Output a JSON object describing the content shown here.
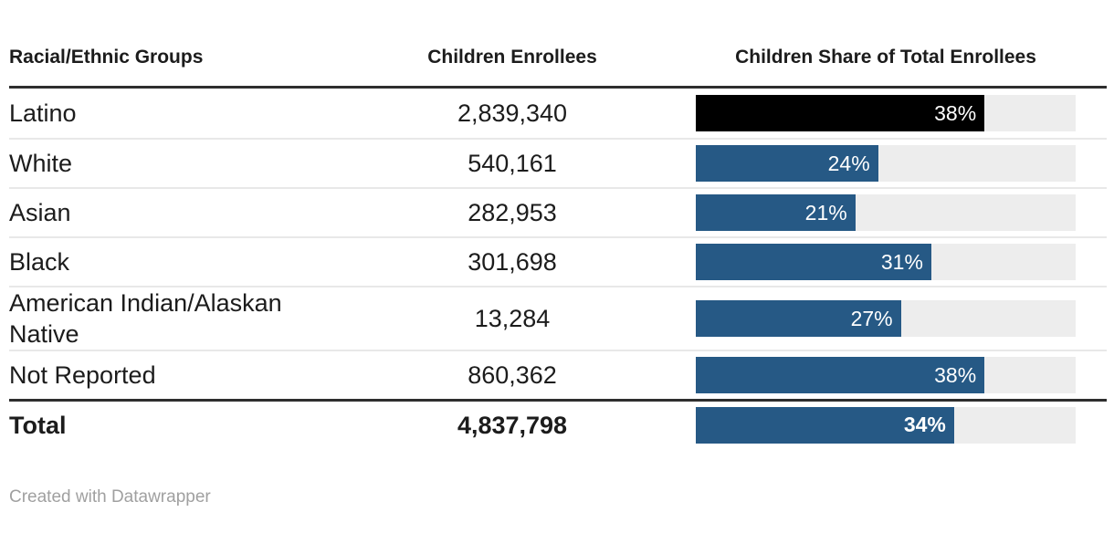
{
  "chart_data": {
    "type": "table",
    "columns": [
      "Racial/Ethnic Groups",
      "Children Enrollees",
      "Children Share of Total Enrollees"
    ],
    "rows": [
      {
        "group": "Latino",
        "children_enrollees": "2,839,340",
        "share_pct": 38,
        "share_label": "38%",
        "bar_color": "#000000",
        "is_total": false
      },
      {
        "group": "White",
        "children_enrollees": "540,161",
        "share_pct": 24,
        "share_label": "24%",
        "bar_color": "#265985",
        "is_total": false
      },
      {
        "group": "Asian",
        "children_enrollees": "282,953",
        "share_pct": 21,
        "share_label": "21%",
        "bar_color": "#265985",
        "is_total": false
      },
      {
        "group": "Black",
        "children_enrollees": "301,698",
        "share_pct": 31,
        "share_label": "31%",
        "bar_color": "#265985",
        "is_total": false
      },
      {
        "group": "American Indian/Alaskan Native",
        "children_enrollees": "13,284",
        "share_pct": 27,
        "share_label": "27%",
        "bar_color": "#265985",
        "is_total": false
      },
      {
        "group": "Not Reported",
        "children_enrollees": "860,362",
        "share_pct": 38,
        "share_label": "38%",
        "bar_color": "#265985",
        "is_total": false
      },
      {
        "group": "Total",
        "children_enrollees": "4,837,798",
        "share_pct": 34,
        "share_label": "34%",
        "bar_color": "#265985",
        "is_total": true
      }
    ],
    "bar_axis_max": 50,
    "bar_track_color": "#ededed",
    "layout_hints": {
      "bar_label_position": "inside-right",
      "bar_label_color": "#ffffff",
      "highlight_row": "Latino"
    }
  },
  "colors": {
    "bar_blue": "#265985",
    "bar_highlight_black": "#000000",
    "bar_track": "#ededed",
    "heavy_rule": "#2e2e2e",
    "thin_divider": "#e8e8e8",
    "text": "#1c1c1c",
    "footer_text": "#a0a0a0"
  },
  "footer": {
    "credit": "Created with Datawrapper"
  }
}
